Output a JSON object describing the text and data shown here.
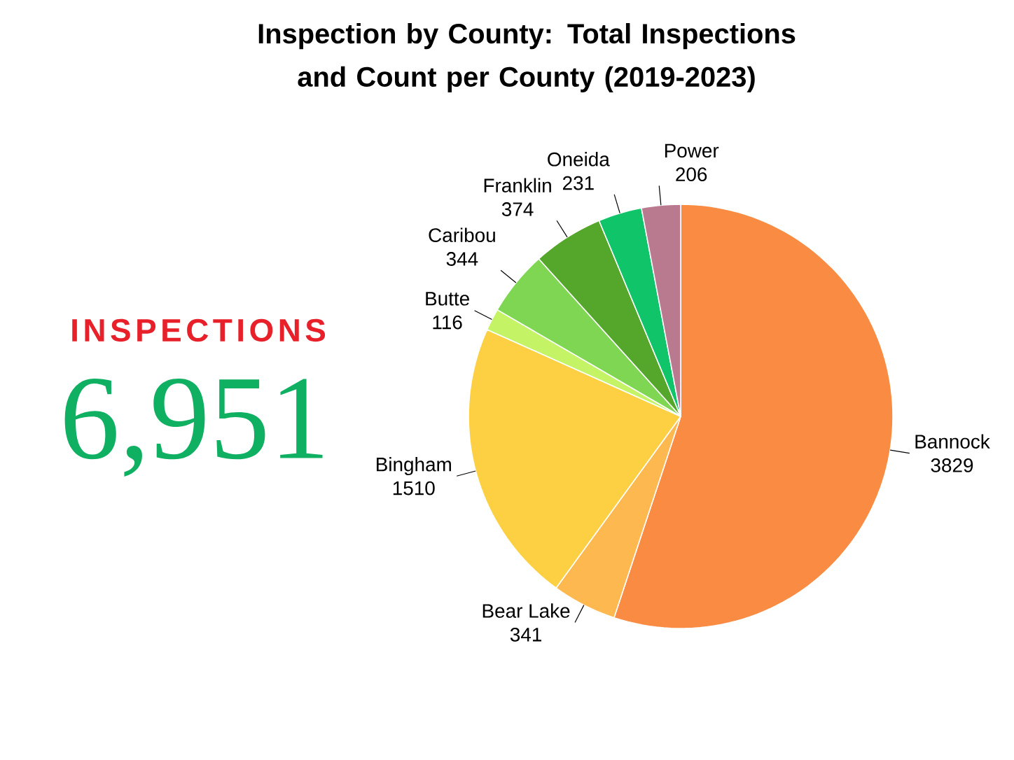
{
  "chart_data": [
    {
      "type": "pie",
      "title": "Inspection by County: Total Inspections and Count per County (2019-2023)",
      "categories": [
        "Bannock",
        "Bear Lake",
        "Bingham",
        "Butte",
        "Caribou",
        "Franklin",
        "Oneida",
        "Power"
      ],
      "values": [
        3829,
        341,
        1510,
        116,
        344,
        374,
        231,
        206
      ],
      "colors": [
        "#f98b43",
        "#fdb850",
        "#fdd043",
        "#c4f466",
        "#7fd653",
        "#55a72c",
        "#10c46a",
        "#b97a90"
      ],
      "data_labels": true
    },
    {
      "type": "other",
      "title": "INSPECTIONS",
      "annotations": [
        "6,951"
      ]
    }
  ]
}
